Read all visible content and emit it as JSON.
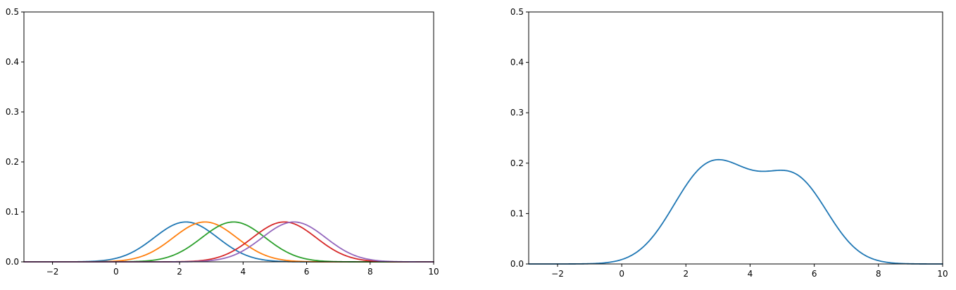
{
  "chart_data": [
    {
      "type": "line",
      "title": "",
      "xlabel": "",
      "ylabel": "",
      "xlim": [
        -2.9,
        10
      ],
      "ylim": [
        0,
        0.5
      ],
      "xticks": [
        -2,
        0,
        2,
        4,
        6,
        8,
        10
      ],
      "yticks": [
        0.0,
        0.1,
        0.2,
        0.3,
        0.4,
        0.5
      ],
      "xtick_labels": [
        "−2",
        "0",
        "2",
        "4",
        "6",
        "8",
        "10"
      ],
      "ytick_labels": [
        "0.0",
        "0.1",
        "0.2",
        "0.3",
        "0.4",
        "0.5"
      ],
      "grid": false,
      "legend": "none",
      "series": [
        {
          "color": "#1f77b4",
          "gaussian": {
            "mean": 2.2,
            "std": 1.0,
            "weight": 0.2
          }
        },
        {
          "color": "#ff7f0e",
          "gaussian": {
            "mean": 2.8,
            "std": 1.0,
            "weight": 0.2
          }
        },
        {
          "color": "#2ca02c",
          "gaussian": {
            "mean": 3.7,
            "std": 1.0,
            "weight": 0.2
          }
        },
        {
          "color": "#d62728",
          "gaussian": {
            "mean": 5.3,
            "std": 1.0,
            "weight": 0.2
          }
        },
        {
          "color": "#9467bd",
          "gaussian": {
            "mean": 5.6,
            "std": 1.0,
            "weight": 0.2
          }
        }
      ]
    },
    {
      "type": "line",
      "title": "",
      "xlabel": "",
      "ylabel": "",
      "xlim": [
        -2.9,
        10
      ],
      "ylim": [
        0,
        0.5
      ],
      "xticks": [
        -2,
        0,
        2,
        4,
        6,
        8,
        10
      ],
      "yticks": [
        0.0,
        0.1,
        0.2,
        0.3,
        0.4,
        0.5
      ],
      "xtick_labels": [
        "−2",
        "0",
        "2",
        "4",
        "6",
        "8",
        "10"
      ],
      "ytick_labels": [
        "0.0",
        "0.1",
        "0.2",
        "0.3",
        "0.4",
        "0.5"
      ],
      "grid": false,
      "legend": "none",
      "series": [
        {
          "color": "#1f77b4",
          "kde_of": [
            {
              "mean": 2.2,
              "std": 1.0,
              "weight": 0.2
            },
            {
              "mean": 2.8,
              "std": 1.0,
              "weight": 0.2
            },
            {
              "mean": 3.7,
              "std": 1.0,
              "weight": 0.2
            },
            {
              "mean": 5.3,
              "std": 1.0,
              "weight": 0.2
            },
            {
              "mean": 5.6,
              "std": 1.0,
              "weight": 0.2
            }
          ]
        }
      ]
    }
  ]
}
